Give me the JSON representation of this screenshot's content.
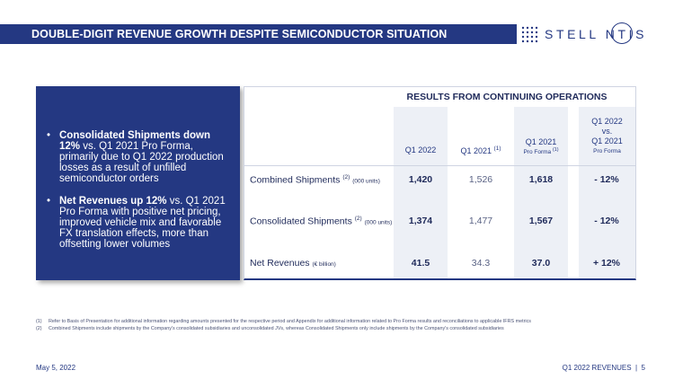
{
  "header": {
    "title": "DOUBLE-DIGIT REVENUE GROWTH DESPITE SEMICONDUCTOR SITUATION",
    "logo_text": "STELL NTIS"
  },
  "summary": {
    "bullets": [
      {
        "bold": "Consolidated Shipments down 12%",
        "text": " vs. Q1 2021 Pro Forma, primarily due to Q1 2022 production losses as a result of unfilled semiconductor orders"
      },
      {
        "bold": "Net Revenues up 12%",
        "text": " vs. Q1 2021 Pro Forma with positive net pricing, improved vehicle mix and favorable FX translation effects, more than offsetting lower volumes"
      }
    ]
  },
  "table": {
    "title": "RESULTS FROM CONTINUING OPERATIONS",
    "columns": [
      {
        "line1": "Q1 2022",
        "line2": "",
        "line3": "",
        "sup": ""
      },
      {
        "line1": "Q1 2021",
        "line2": "",
        "line3": "",
        "sup": "(1)"
      },
      {
        "line1": "Q1 2021",
        "line2": "Pro Forma",
        "line3": "",
        "sup": "(1)"
      },
      {
        "line1": "Q1 2022",
        "line2": "vs.",
        "line3": "Q1 2021",
        "line4": "Pro Forma"
      }
    ],
    "rows": [
      {
        "label": "Combined Shipments",
        "sup": "(2)",
        "unit": "(000 units)",
        "values": [
          "1,420",
          "1,526",
          "1,618",
          "- 12%"
        ]
      },
      {
        "label": "Consolidated Shipments",
        "sup": "(2)",
        "unit": "(000 units)",
        "values": [
          "1,374",
          "1,477",
          "1,567",
          "- 12%"
        ]
      },
      {
        "label": "Net Revenues",
        "sup": "",
        "unit": "(€ billion)",
        "values": [
          "41.5",
          "34.3",
          "37.0",
          "+ 12%"
        ]
      }
    ]
  },
  "footnotes": [
    {
      "num": "(1)",
      "text": "Refer to Basis of Presentation for additional information regarding amounts presented for the respective period and Appendix for additional information related to Pro Forma results and reconciliations to applicable IFRS metrics"
    },
    {
      "num": "(2)",
      "text": "Combined Shipments include shipments by the Company's consolidated subsidiaries and unconsolidated JVs, whereas Consolidated Shipments only include shipments by the Company's consolidated subsidiaries"
    }
  ],
  "footer": {
    "date": "May 5, 2022",
    "section": "Q1 2022 REVENUES",
    "separator": "|",
    "page": "5"
  },
  "colors": {
    "brand": "#243882",
    "shade": "#edf0f6"
  }
}
